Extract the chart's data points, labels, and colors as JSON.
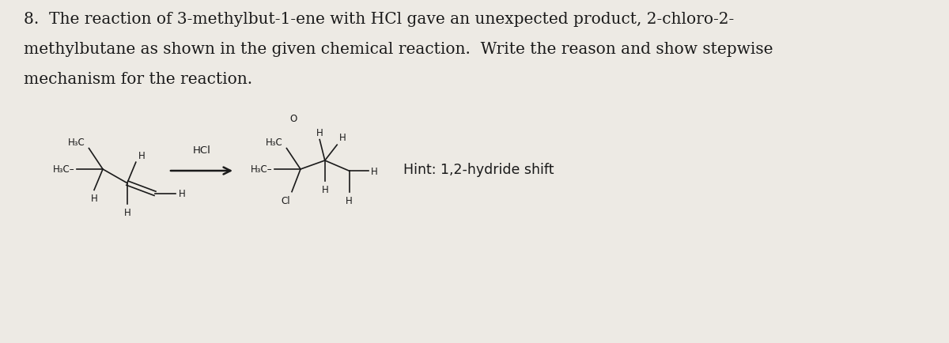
{
  "title_line1": "8.  The reaction of 3-methylbut-1-ene with HCl gave an unexpected product, 2-chloro-2-",
  "title_line2": "methylbutane as shown in the given chemical reaction.  Write the reason and show stepwise",
  "title_line3": "mechanism for the reaction.",
  "hint_text": "Hint: 1,2-hydride shift",
  "hcl_text": "HCl",
  "background_color": "#edeae4",
  "text_color": "#1a1a1a",
  "title_fontsize": 14.5,
  "hint_fontsize": 12.5,
  "struct_fontsize": 8.5
}
